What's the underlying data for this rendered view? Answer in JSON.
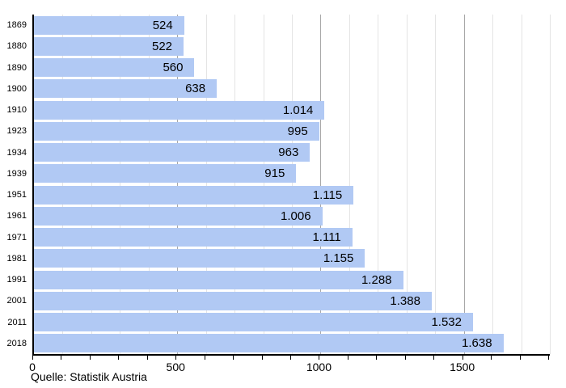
{
  "chart_data": {
    "type": "bar",
    "orientation": "horizontal",
    "title": "",
    "categories": [
      "1869",
      "1880",
      "1890",
      "1900",
      "1910",
      "1923",
      "1934",
      "1939",
      "1951",
      "1961",
      "1971",
      "1981",
      "1991",
      "2001",
      "2011",
      "2018"
    ],
    "values": [
      524,
      522,
      560,
      638,
      1014,
      995,
      963,
      915,
      1115,
      1006,
      1111,
      1155,
      1288,
      1388,
      1532,
      1638
    ],
    "value_labels": [
      "524",
      "522",
      "560",
      "638",
      "1.014",
      "995",
      "963",
      "915",
      "1.115",
      "1.006",
      "1.111",
      "1.155",
      "1.288",
      "1.388",
      "1.532",
      "1.638"
    ],
    "xlim": [
      0,
      1800
    ],
    "x_major_ticks": [
      0,
      500,
      1000,
      1500
    ],
    "x_major_tick_labels": [
      "0",
      "500",
      "1000",
      "1500"
    ],
    "x_minor_step": 100,
    "grid": "vertical",
    "legend": "none",
    "source": "Quelle: Statistik Austria"
  },
  "colors": {
    "bar_fill": "#b1c9f4",
    "grid_minor": "#e4e4e4",
    "grid_major": "#a8a8a8",
    "axis": "#000000",
    "text": "#000000",
    "background": "#ffffff"
  }
}
